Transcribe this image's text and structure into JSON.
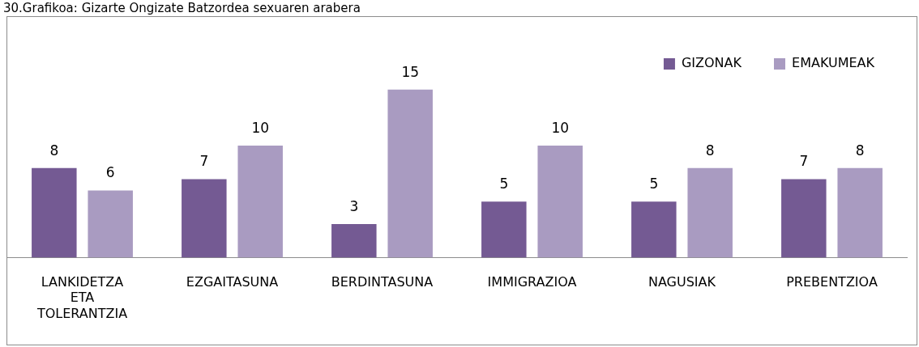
{
  "chart_data": {
    "type": "bar",
    "title": "30.Grafikoa: Gizarte Ongizate Batzordea sexuaren arabera",
    "categories": [
      "LANKIDETZA ETA TOLERANTZIA",
      "EZGAITASUNA",
      "BERDINTASUNA",
      "IMMIGRAZIOA",
      "NAGUSIAK",
      "PREBENTZIOA"
    ],
    "series": [
      {
        "name": "GIZONAK",
        "color": "#745a93",
        "values": [
          8,
          7,
          3,
          5,
          5,
          7
        ]
      },
      {
        "name": "EMAKUMEAK",
        "color": "#a99bc1",
        "values": [
          6,
          10,
          15,
          10,
          8,
          8
        ]
      }
    ],
    "data_labels": true,
    "legend": "top right",
    "grid": false
  }
}
